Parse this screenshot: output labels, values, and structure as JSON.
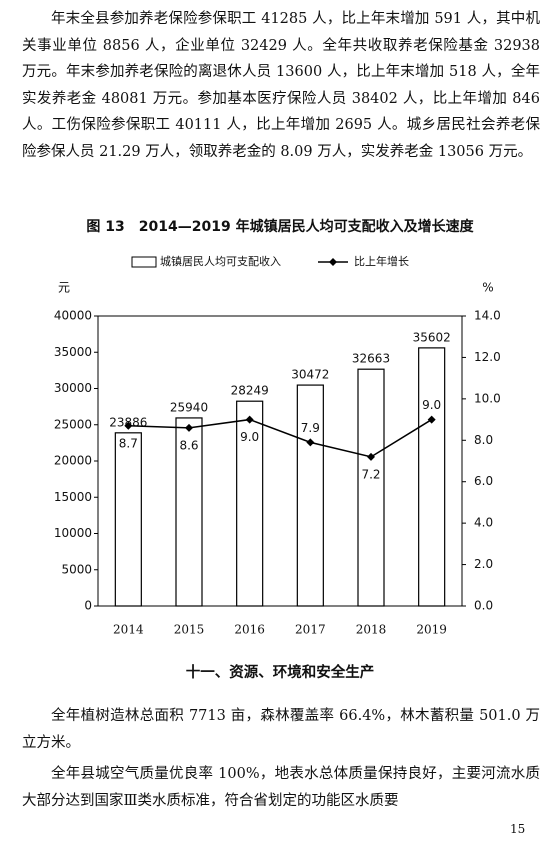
{
  "paragraphs": [
    "年末全县参加养老保险参保职工 41285 人，比上年末增加 591 人，其中机关事业单位 8856 人，企业单位 32429 人。全年共收取养老保险基金 32938 万元。年末参加养老保险的离退休人员 13600 人，比上年末增加 518 人，全年实发养老金 48081 万元。参加基本医疗保险人员 38402 人，比上年增加 846 人。工伤保险参保职工 40111 人，比上年增加 2695 人。城乡居民社会养老保险参保人员 21.29 万人，领取养老金的 8.09 万人，实发养老金 13056 万元。"
  ],
  "chart_data": {
    "type": "bar",
    "title": "图 13　2014—2019 年城镇居民人均可支配收入及增长速度",
    "y_unit": "元",
    "y2_unit": "%",
    "categories": [
      "2014",
      "2015",
      "2016",
      "2017",
      "2018",
      "2019"
    ],
    "series": [
      {
        "name": "城镇居民人均可支配收入",
        "type": "bar",
        "color": "#000000",
        "values": [
          23886,
          25940,
          28249,
          30472,
          32663,
          35602
        ]
      },
      {
        "name": "比上年增长",
        "type": "line",
        "axis": "y2",
        "color": "#000000",
        "values": [
          8.7,
          8.6,
          9.0,
          7.9,
          7.2,
          9.0
        ],
        "value_labels": [
          "8.7",
          "8.6",
          "9.0",
          "7.9",
          "7.2",
          "9.0"
        ]
      }
    ],
    "ylim": [
      0,
      40000
    ],
    "yticks": [
      0,
      5000,
      10000,
      15000,
      20000,
      25000,
      30000,
      35000,
      40000
    ],
    "y2lim": [
      0,
      14
    ],
    "y2ticks": [
      {
        "value": 0,
        "label": "0.0"
      },
      {
        "value": 2,
        "label": "2.0"
      },
      {
        "value": 4,
        "label": "4.0"
      },
      {
        "value": 6,
        "label": "6.0"
      },
      {
        "value": 8,
        "label": "8.0"
      },
      {
        "value": 10,
        "label": "10.0"
      },
      {
        "value": 12,
        "label": "12.0"
      },
      {
        "value": 14,
        "label": "14.0"
      }
    ]
  },
  "section": {
    "heading": "十一、资源、环境和安全生产",
    "paragraphs": [
      "全年植树造林总面积 7713 亩，森林覆盖率 66.4%，林木蓄积量 501.0 万立方米。",
      "全年县城空气质量优良率 100%，地表水总体质量保持良好，主要河流水质大部分达到国家Ⅲ类水质标准，符合省划定的功能区水质要"
    ]
  },
  "page_number": "15"
}
